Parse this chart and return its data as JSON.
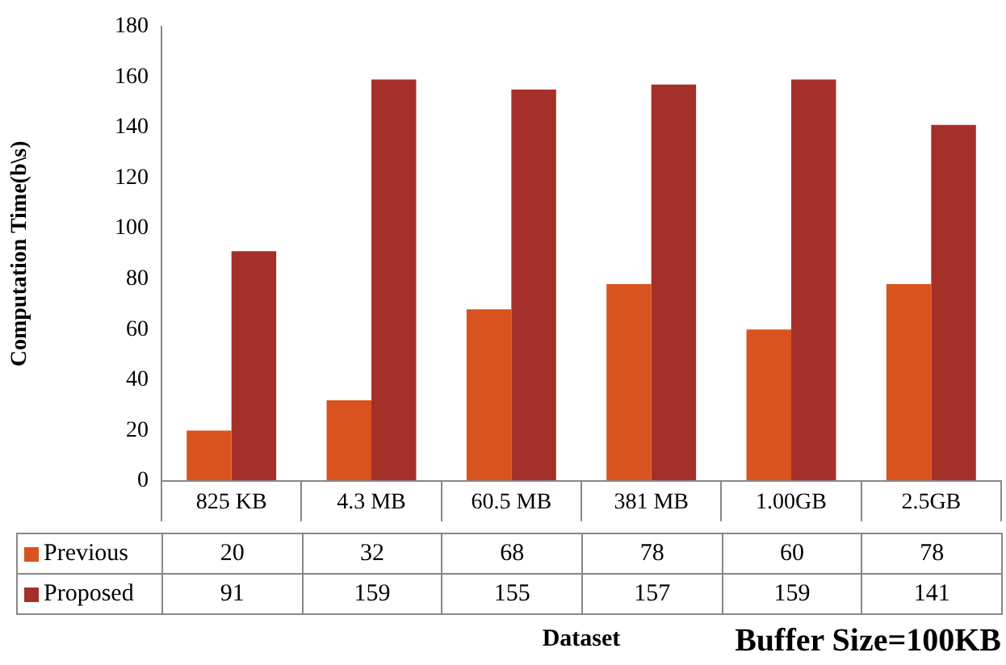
{
  "chart_data": {
    "type": "bar",
    "xlabel": "Dataset",
    "ylabel": "Computation Time(b\\s)",
    "categories": [
      "825 KB",
      "4.3 MB",
      "60.5 MB",
      "381 MB",
      "1.00GB",
      "2.5GB"
    ],
    "series": [
      {
        "name": "Previous",
        "color": "#d9531e",
        "values": [
          20,
          32,
          68,
          78,
          60,
          78
        ]
      },
      {
        "name": "Proposed",
        "color": "#a5302a",
        "values": [
          91,
          159,
          155,
          157,
          159,
          141
        ]
      }
    ],
    "ylim": [
      0,
      180
    ],
    "yticks": [
      0,
      20,
      40,
      60,
      80,
      100,
      120,
      140,
      160,
      180
    ],
    "grid": false,
    "legend": "bottom",
    "data_labels": true,
    "annotations": [
      "Buffer Size=100KB"
    ]
  }
}
